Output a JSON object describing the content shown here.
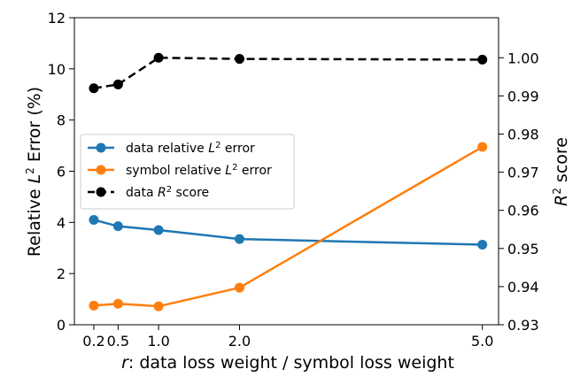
{
  "chart_data": {
    "type": "line",
    "xlabel_var": "r",
    "xlabel_rest": ": data loss weight / symbol loss weight",
    "ylabel_left_pre": "Relative ",
    "ylabel_left_var": "L",
    "ylabel_left_sup": "2",
    "ylabel_left_post": " Error (%)",
    "ylabel_right_var": "R",
    "ylabel_right_sup": "2",
    "ylabel_right_post": " score",
    "x": [
      0.2,
      0.5,
      1.0,
      2.0,
      5.0
    ],
    "xticks": [
      0.2,
      0.5,
      1.0,
      2.0,
      5.0
    ],
    "xtick_labels": [
      "0.2",
      "0.5",
      "1.0",
      "2.0",
      "5.0"
    ],
    "xlim": [
      -0.04,
      5.2
    ],
    "ylim_left": [
      0,
      12
    ],
    "yticks_left": [
      0,
      2,
      4,
      6,
      8,
      10,
      12
    ],
    "ylim_right": [
      0.93,
      1.0105
    ],
    "yticks_right": [
      0.93,
      0.94,
      0.95,
      0.96,
      0.97,
      0.98,
      0.99,
      1.0
    ],
    "ytick_labels_right": [
      "0.93",
      "0.94",
      "0.95",
      "0.96",
      "0.97",
      "0.98",
      "0.99",
      "1.00"
    ],
    "legend_position": "center-left",
    "series": [
      {
        "name_pre": "data relative ",
        "name_var": "L",
        "name_sup": "2",
        "name_post": " error",
        "axis": "left",
        "values": [
          4.1,
          3.85,
          3.7,
          3.35,
          3.13
        ],
        "color": "#1f77b4",
        "style": "solid"
      },
      {
        "name_pre": "symbol relative ",
        "name_var": "L",
        "name_sup": "2",
        "name_post": " error",
        "axis": "left",
        "values": [
          0.75,
          0.82,
          0.72,
          1.45,
          6.95
        ],
        "color": "#ff7f0e",
        "style": "solid"
      },
      {
        "name_pre": "data ",
        "name_var": "R",
        "name_sup": "2",
        "name_post": " score",
        "axis": "right",
        "values": [
          0.992,
          0.993,
          1.0,
          0.9997,
          0.9995
        ],
        "color": "#000000",
        "style": "dashed"
      }
    ]
  }
}
